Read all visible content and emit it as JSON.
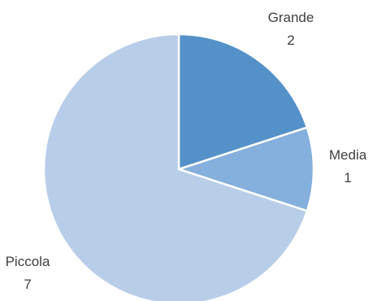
{
  "chart_data": {
    "type": "pie",
    "categories": [
      "Grande",
      "Media",
      "Piccola"
    ],
    "values": [
      2,
      1,
      7
    ],
    "colors": [
      "#5591c9",
      "#85afdc",
      "#b8cde8"
    ],
    "label_color": "#404040",
    "start_angle_deg": 0,
    "direction": "clockwise",
    "legend": "none"
  }
}
